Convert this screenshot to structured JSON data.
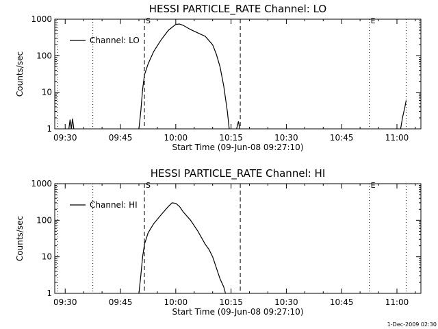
{
  "chart_data": [
    {
      "type": "line",
      "title": "HESSI PARTICLE_RATE Channel: LO",
      "xlabel": "Start Time (09-Jun-08 09:27:10)",
      "ylabel": "Counts/sec",
      "y_scale": "log",
      "ylim": [
        1,
        1000
      ],
      "xlim": [
        "09:27:10",
        "11:06:30"
      ],
      "x_ticks": [
        "09:30",
        "09:45",
        "10:00",
        "10:15",
        "10:30",
        "10:45",
        "11:00"
      ],
      "y_ticks": [
        "1",
        "10",
        "100",
        "1000"
      ],
      "legend": "top-left",
      "grid": false,
      "markers": [
        {
          "label": "S",
          "x": "09:51:30",
          "style": "dashed"
        },
        {
          "label": "E",
          "x": "10:52:30",
          "style": "dotted"
        }
      ],
      "vertical_lines": [
        {
          "x": "09:28:00",
          "style": "dotted"
        },
        {
          "x": "09:37:30",
          "style": "dotted"
        },
        {
          "x": "09:51:30",
          "style": "dashed"
        },
        {
          "x": "10:17:30",
          "style": "dashed"
        },
        {
          "x": "10:52:30",
          "style": "dotted"
        },
        {
          "x": "11:02:30",
          "style": "dotted"
        }
      ],
      "series": [
        {
          "name": "Channel: LO",
          "segments": [
            [
              [
                "09:31:00",
                1
              ],
              [
                "09:31:20",
                1.8
              ],
              [
                "09:31:40",
                1
              ],
              [
                "09:32:00",
                1.9
              ],
              [
                "09:32:20",
                1
              ]
            ],
            [
              [
                "09:50:00",
                1
              ],
              [
                "09:50:30",
                3
              ],
              [
                "09:51:00",
                12
              ],
              [
                "09:51:30",
                30
              ],
              [
                "09:52:30",
                60
              ],
              [
                "09:54:00",
                130
              ],
              [
                "09:56:00",
                270
              ],
              [
                "09:58:00",
                500
              ],
              [
                "10:00:00",
                720
              ],
              [
                "10:01:00",
                740
              ],
              [
                "10:02:00",
                680
              ],
              [
                "10:04:00",
                520
              ],
              [
                "10:06:00",
                420
              ],
              [
                "10:08:00",
                340
              ],
              [
                "10:10:00",
                200
              ],
              [
                "10:11:00",
                110
              ],
              [
                "10:12:00",
                50
              ],
              [
                "10:13:00",
                15
              ],
              [
                "10:14:00",
                3
              ],
              [
                "10:14:30",
                1
              ]
            ],
            [
              [
                "10:16:30",
                1
              ],
              [
                "10:17:00",
                1.6
              ],
              [
                "10:17:20",
                1
              ]
            ],
            [
              [
                "11:01:00",
                1
              ],
              [
                "11:01:30",
                2
              ],
              [
                "11:02:10",
                4
              ],
              [
                "11:02:30",
                6
              ]
            ]
          ]
        }
      ]
    },
    {
      "type": "line",
      "title": "HESSI PARTICLE_RATE Channel: HI",
      "xlabel": "Start Time (09-Jun-08 09:27:10)",
      "ylabel": "Counts/sec",
      "y_scale": "log",
      "ylim": [
        1,
        1000
      ],
      "xlim": [
        "09:27:10",
        "11:06:30"
      ],
      "x_ticks": [
        "09:30",
        "09:45",
        "10:00",
        "10:15",
        "10:30",
        "10:45",
        "11:00"
      ],
      "y_ticks": [
        "1",
        "10",
        "100",
        "1000"
      ],
      "legend": "top-left",
      "grid": false,
      "markers": [
        {
          "label": "S",
          "x": "09:51:30",
          "style": "dashed"
        },
        {
          "label": "E",
          "x": "10:52:30",
          "style": "dotted"
        }
      ],
      "vertical_lines": [
        {
          "x": "09:28:00",
          "style": "dotted"
        },
        {
          "x": "09:37:30",
          "style": "dotted"
        },
        {
          "x": "09:51:30",
          "style": "dashed"
        },
        {
          "x": "10:17:30",
          "style": "dashed"
        },
        {
          "x": "10:52:30",
          "style": "dotted"
        },
        {
          "x": "11:02:30",
          "style": "dotted"
        }
      ],
      "series": [
        {
          "name": "Channel: HI",
          "segments": [
            [
              [
                "09:50:00",
                1
              ],
              [
                "09:50:30",
                3
              ],
              [
                "09:51:00",
                10
              ],
              [
                "09:51:30",
                22
              ],
              [
                "09:52:30",
                45
              ],
              [
                "09:54:00",
                80
              ],
              [
                "09:56:00",
                140
              ],
              [
                "09:58:00",
                240
              ],
              [
                "09:59:00",
                300
              ],
              [
                "10:00:00",
                290
              ],
              [
                "10:01:00",
                240
              ],
              [
                "10:02:00",
                170
              ],
              [
                "10:04:00",
                100
              ],
              [
                "10:06:00",
                50
              ],
              [
                "10:08:00",
                22
              ],
              [
                "10:09:00",
                16
              ],
              [
                "10:10:00",
                10
              ],
              [
                "10:11:00",
                5
              ],
              [
                "10:12:00",
                2.5
              ],
              [
                "10:13:00",
                1.5
              ],
              [
                "10:13:30",
                1
              ]
            ]
          ]
        }
      ]
    }
  ],
  "timestamp": "1-Dec-2009 02:30"
}
